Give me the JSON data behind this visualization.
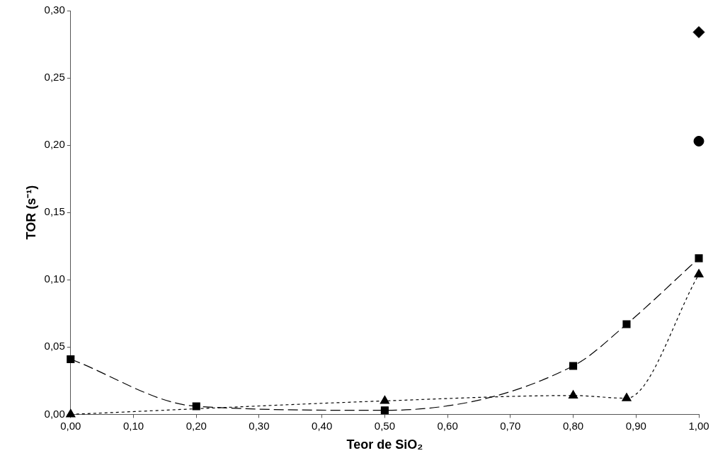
{
  "chart_data": {
    "type": "line",
    "xlabel": "Teor de SiO₂",
    "ylabel": "TOR (s⁻¹)",
    "xlim": [
      0,
      1
    ],
    "xticks": [
      {
        "value": 0,
        "label": "0,00"
      },
      {
        "value": 0.1,
        "label": "0,10"
      },
      {
        "value": 0.2,
        "label": "0,20"
      },
      {
        "value": 0.3,
        "label": "0,30"
      },
      {
        "value": 0.4,
        "label": "0,40"
      },
      {
        "value": 0.5,
        "label": "0,50"
      },
      {
        "value": 0.6,
        "label": "0,60"
      },
      {
        "value": 0.7,
        "label": "0,70"
      },
      {
        "value": 0.8,
        "label": "0,80"
      },
      {
        "value": 0.9,
        "label": "0,90"
      },
      {
        "value": 1,
        "label": "1,00"
      }
    ],
    "ylim": [
      0,
      0.3
    ],
    "yticks": [
      {
        "value": 0,
        "label": "0,00"
      },
      {
        "value": 0.05,
        "label": "0,05"
      },
      {
        "value": 0.1,
        "label": "0,10"
      },
      {
        "value": 0.15,
        "label": "0,15"
      },
      {
        "value": 0.2,
        "label": "0,20"
      },
      {
        "value": 0.25,
        "label": "0,25"
      },
      {
        "value": 0.3,
        "label": "0,30"
      }
    ],
    "grid": false,
    "legend": false,
    "series": [
      {
        "type": "line",
        "color": "#000000",
        "marker": "square",
        "line_style": "dashed",
        "x": [
          0,
          0.2,
          0.5,
          0.8,
          0.885,
          1
        ],
        "values": [
          0.041,
          0.006,
          0.003,
          0.036,
          0.067,
          0.116
        ]
      },
      {
        "type": "line",
        "color": "#000000",
        "marker": "triangle",
        "line_style": "dotted",
        "x": [
          0,
          0.2,
          0.5,
          0.8,
          0.885,
          1
        ],
        "values": [
          0,
          null,
          0.01,
          0.014,
          0.012,
          0.104
        ]
      },
      {
        "type": "scatter",
        "color": "#000000",
        "marker": "diamond",
        "x": [
          1
        ],
        "values": [
          0.284
        ]
      },
      {
        "type": "scatter",
        "color": "#000000",
        "marker": "circle",
        "x": [
          1
        ],
        "values": [
          0.203
        ]
      }
    ]
  }
}
